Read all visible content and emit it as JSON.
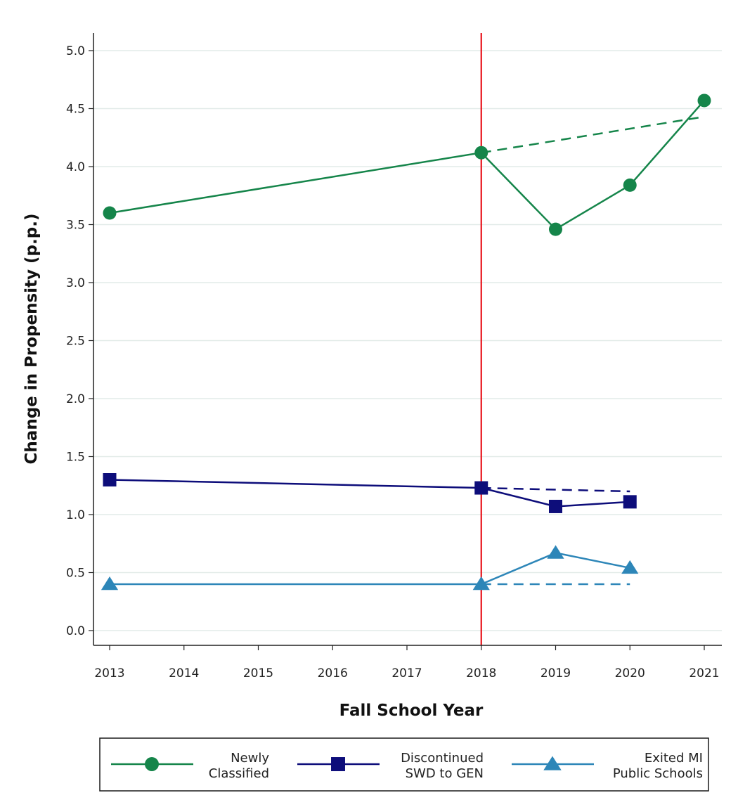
{
  "chart_data": {
    "type": "line",
    "xlabel": "Fall School Year",
    "ylabel": "Change in Propensity (p.p.)",
    "xlim": [
      2013,
      2021
    ],
    "ylim": [
      0.0,
      5.0
    ],
    "x_ticks": [
      2013,
      2014,
      2015,
      2016,
      2017,
      2018,
      2019,
      2020,
      2021
    ],
    "y_ticks": [
      "0.0",
      "0.5",
      "1.0",
      "1.5",
      "2.0",
      "2.5",
      "3.0",
      "3.5",
      "4.0",
      "4.5",
      "5.0"
    ],
    "grid": "horizontal",
    "vertical_line": {
      "x": 2018,
      "color": "#e8141c"
    },
    "legend_position": "bottom",
    "series": [
      {
        "name": "Newly Classified",
        "legend_lines": [
          "Newly",
          "Classified"
        ],
        "color": "#15854a",
        "marker": "circle",
        "x": [
          2013,
          2018,
          2019,
          2020,
          2021
        ],
        "values": [
          3.6,
          4.12,
          3.46,
          3.84,
          4.57
        ],
        "trend": {
          "x": [
            2018,
            2021
          ],
          "values": [
            4.12,
            4.43
          ]
        }
      },
      {
        "name": "Discontinued SWD to GEN",
        "legend_lines": [
          "Discontinued",
          "SWD to GEN"
        ],
        "color": "#0d0d7a",
        "marker": "square",
        "x": [
          2013,
          2018,
          2019,
          2020
        ],
        "values": [
          1.3,
          1.23,
          1.07,
          1.11
        ],
        "trend": {
          "x": [
            2018,
            2020
          ],
          "values": [
            1.23,
            1.2
          ]
        }
      },
      {
        "name": "Exited MI Public Schools",
        "legend_lines": [
          "Exited MI",
          "Public Schools"
        ],
        "color": "#2d86b8",
        "marker": "triangle",
        "x": [
          2013,
          2018,
          2019,
          2020
        ],
        "values": [
          0.4,
          0.4,
          0.67,
          0.54
        ],
        "trend": {
          "x": [
            2018,
            2020
          ],
          "values": [
            0.4,
            0.4
          ]
        }
      }
    ]
  }
}
